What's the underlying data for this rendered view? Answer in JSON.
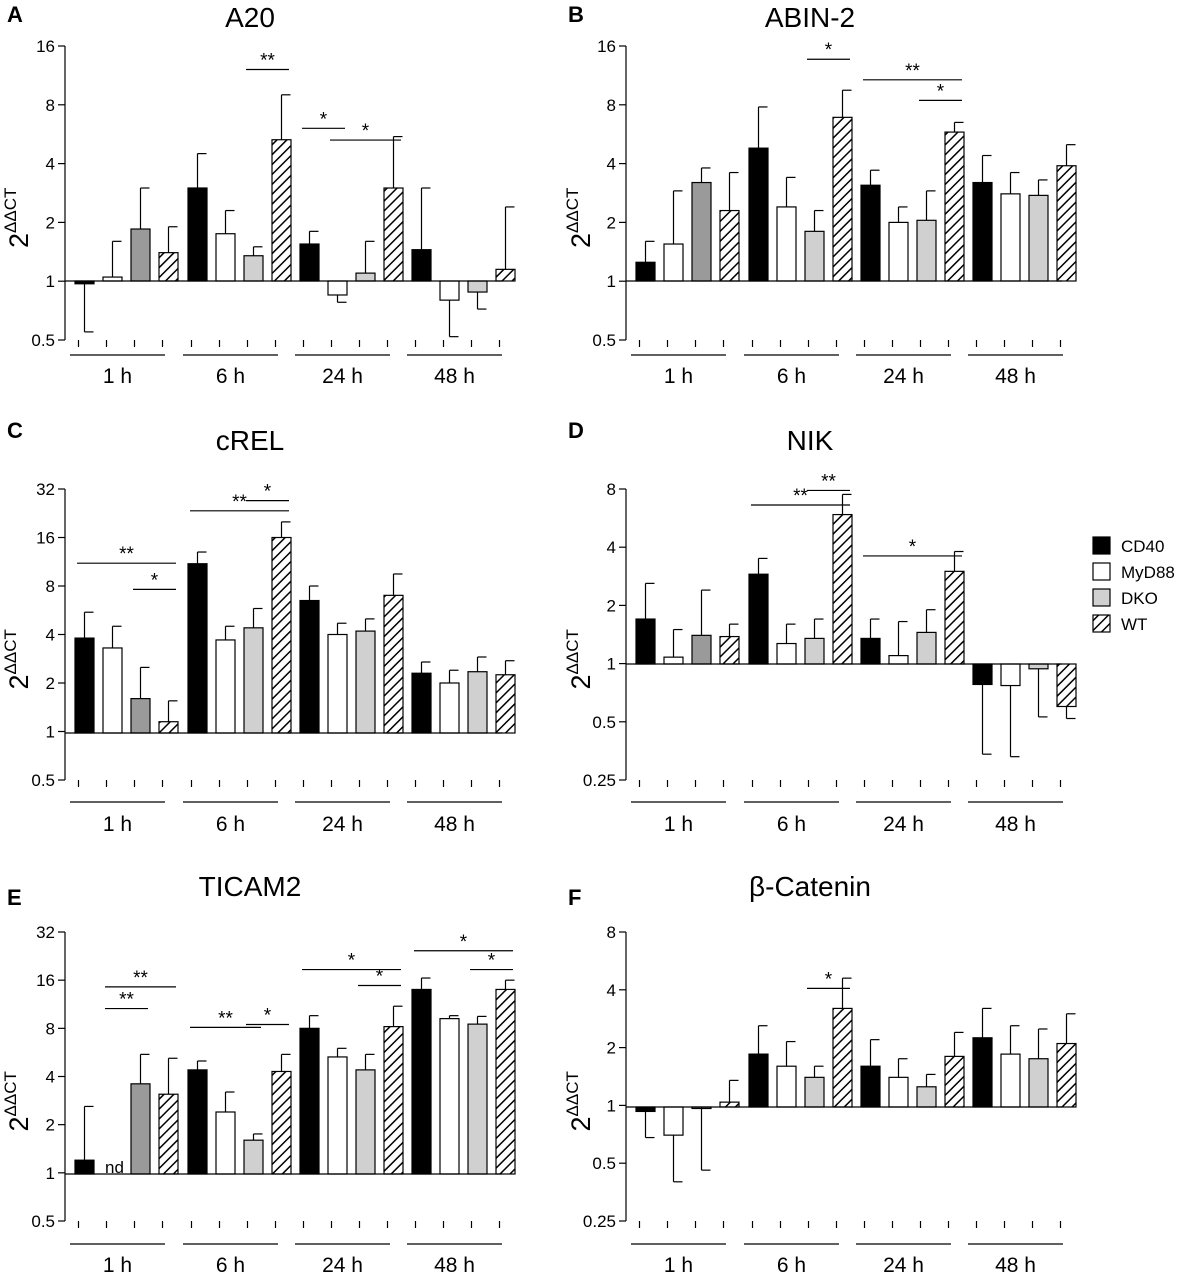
{
  "legend": {
    "items": [
      {
        "name": "CD40",
        "fill": "#000000"
      },
      {
        "name": "MyD88",
        "fill": "#ffffff"
      },
      {
        "name": "DKO",
        "fill": "#d0d0d0"
      },
      {
        "name": "WT",
        "fill": "hatch"
      }
    ]
  },
  "y_axis_label": {
    "base": "2",
    "superscript": "ΔΔCT"
  },
  "series_colors": {
    "CD40": "#000000",
    "MyD88": "#ffffff",
    "DKO": "#d0d0d0",
    "DKO_1h_dark": "#9a9a9a",
    "WT": "hatch"
  },
  "chart_data": [
    {
      "panel": "A",
      "title": "A20",
      "type": "bar",
      "yscale": "log2",
      "categories": [
        "1 h",
        "6 h",
        "24 h",
        "48 h"
      ],
      "yticks": [
        0.5,
        1,
        2,
        4,
        8,
        16
      ],
      "ytick_labels": [
        "0.5",
        "1",
        "2",
        "4",
        "8",
        "16"
      ],
      "ylim": [
        0.5,
        16
      ],
      "series": [
        {
          "name": "CD40",
          "values": [
            0.97,
            3.0,
            1.55,
            1.45
          ],
          "errors": [
            0.55,
            4.5,
            1.8,
            3.0
          ]
        },
        {
          "name": "MyD88",
          "values": [
            1.05,
            1.75,
            0.85,
            0.8
          ],
          "errors": [
            1.6,
            2.3,
            0.78,
            0.52
          ]
        },
        {
          "name": "DKO",
          "values": [
            1.85,
            1.35,
            1.1,
            0.88
          ],
          "errors": [
            3.0,
            1.5,
            1.6,
            0.72
          ]
        },
        {
          "name": "WT",
          "values": [
            1.4,
            5.3,
            3.0,
            1.15
          ],
          "errors": [
            1.9,
            9.0,
            5.5,
            2.4
          ]
        }
      ],
      "significance": [
        {
          "group": "6 h",
          "from": "DKO",
          "to": "WT",
          "level": 0.92,
          "label": "**"
        },
        {
          "group": "24 h",
          "from": "CD40",
          "to": "MyD88",
          "level": 0.72,
          "label": "*"
        },
        {
          "group": "24 h",
          "from": "MyD88",
          "to": "WT",
          "level": 0.68,
          "label": "*"
        }
      ]
    },
    {
      "panel": "B",
      "title": "ABIN-2",
      "type": "bar",
      "yscale": "log2",
      "categories": [
        "1 h",
        "6 h",
        "24 h",
        "48 h"
      ],
      "yticks": [
        0.5,
        1,
        2,
        4,
        8,
        16
      ],
      "ytick_labels": [
        "0.5",
        "1",
        "2",
        "4",
        "8",
        "16"
      ],
      "ylim": [
        0.5,
        16
      ],
      "series": [
        {
          "name": "CD40",
          "values": [
            1.25,
            4.8,
            3.1,
            3.2
          ],
          "errors": [
            1.6,
            7.8,
            3.7,
            4.4
          ]
        },
        {
          "name": "MyD88",
          "values": [
            1.55,
            2.4,
            2.0,
            2.8
          ],
          "errors": [
            2.9,
            3.4,
            2.4,
            3.6
          ]
        },
        {
          "name": "DKO",
          "values": [
            3.2,
            1.8,
            2.05,
            2.75
          ],
          "errors": [
            3.8,
            2.3,
            2.9,
            3.3
          ]
        },
        {
          "name": "WT",
          "values": [
            2.3,
            6.9,
            5.8,
            3.9
          ],
          "errors": [
            3.6,
            9.5,
            6.5,
            5.0
          ]
        }
      ],
      "significance": [
        {
          "group": "6 h",
          "from": "DKO",
          "to": "WT",
          "level": 0.955,
          "label": "*"
        },
        {
          "group": "24 h",
          "from": "CD40",
          "to": "WT",
          "level": 0.885,
          "label": "**"
        },
        {
          "group": "24 h",
          "from": "DKO",
          "to": "WT",
          "level": 0.815,
          "label": "*"
        }
      ]
    },
    {
      "panel": "C",
      "title": "cREL",
      "type": "bar",
      "yscale": "log2",
      "categories": [
        "1 h",
        "6 h",
        "24 h",
        "48 h"
      ],
      "yticks": [
        0.5,
        1,
        2,
        4,
        8,
        16,
        32
      ],
      "ytick_labels": [
        "0.5",
        "1",
        "2",
        "4",
        "8",
        "16",
        "32"
      ],
      "ylim": [
        0.5,
        32
      ],
      "series": [
        {
          "name": "CD40",
          "values": [
            3.8,
            11.0,
            6.5,
            2.3
          ],
          "errors": [
            5.5,
            13.0,
            8.0,
            2.7
          ]
        },
        {
          "name": "MyD88",
          "values": [
            3.3,
            3.7,
            4.0,
            2.0
          ],
          "errors": [
            4.5,
            4.5,
            4.7,
            2.4
          ]
        },
        {
          "name": "DKO",
          "values": [
            1.6,
            4.4,
            4.2,
            2.35
          ],
          "errors": [
            2.5,
            5.8,
            5.0,
            2.9
          ]
        },
        {
          "name": "WT",
          "values": [
            1.15,
            16.0,
            7.0,
            2.25
          ],
          "errors": [
            1.55,
            20.0,
            9.5,
            2.75
          ]
        }
      ],
      "significance": [
        {
          "group": "1 h",
          "from": "CD40",
          "to": "WT",
          "level": 0.745,
          "label": "**"
        },
        {
          "group": "1 h",
          "from": "DKO",
          "to": "WT",
          "level": 0.655,
          "label": "*"
        },
        {
          "group": "6 h",
          "from": "CD40",
          "to": "WT",
          "level": 0.925,
          "label": "**"
        },
        {
          "group": "6 h",
          "from": "DKO",
          "to": "WT",
          "level": 0.96,
          "label": "*"
        }
      ]
    },
    {
      "panel": "D",
      "title": "NIK",
      "type": "bar",
      "yscale": "log2",
      "categories": [
        "1 h",
        "6 h",
        "24 h",
        "48 h"
      ],
      "yticks": [
        0.25,
        0.5,
        1,
        2,
        4,
        8
      ],
      "ytick_labels": [
        "0.25",
        "0.5",
        "1",
        "2",
        "4",
        "8"
      ],
      "ylim": [
        0.25,
        8
      ],
      "series": [
        {
          "name": "CD40",
          "values": [
            1.7,
            2.9,
            1.35,
            0.78
          ],
          "errors": [
            2.6,
            3.5,
            1.7,
            0.34
          ]
        },
        {
          "name": "MyD88",
          "values": [
            1.08,
            1.27,
            1.1,
            0.77
          ],
          "errors": [
            1.5,
            1.6,
            1.65,
            0.33
          ]
        },
        {
          "name": "DKO",
          "values": [
            1.4,
            1.35,
            1.45,
            0.94
          ],
          "errors": [
            2.4,
            1.7,
            1.9,
            0.53
          ]
        },
        {
          "name": "WT",
          "values": [
            1.38,
            5.9,
            3.0,
            0.6
          ],
          "errors": [
            1.6,
            7.5,
            3.8,
            0.52
          ]
        }
      ],
      "significance": [
        {
          "group": "6 h",
          "from": "CD40",
          "to": "WT",
          "level": 0.945,
          "label": "**"
        },
        {
          "group": "6 h",
          "from": "DKO",
          "to": "WT",
          "level": 0.995,
          "label": "**"
        },
        {
          "group": "24 h",
          "from": "CD40",
          "to": "WT",
          "level": 0.77,
          "label": "*"
        }
      ]
    },
    {
      "panel": "E",
      "title": "TICAM2",
      "type": "bar",
      "yscale": "log2",
      "categories": [
        "1 h",
        "6 h",
        "24 h",
        "48 h"
      ],
      "yticks": [
        0.5,
        1,
        2,
        4,
        8,
        16,
        32
      ],
      "ytick_labels": [
        "0.5",
        "1",
        "2",
        "4",
        "8",
        "16",
        "32"
      ],
      "ylim": [
        0.5,
        32
      ],
      "series": [
        {
          "name": "CD40",
          "values": [
            1.2,
            4.4,
            8.0,
            14.0
          ],
          "errors": [
            2.6,
            5.0,
            9.6,
            16.5
          ]
        },
        {
          "name": "MyD88",
          "values": [
            null,
            2.4,
            5.3,
            9.2
          ],
          "errors": [
            null,
            3.2,
            6.0,
            9.6
          ]
        },
        {
          "name": "DKO",
          "values": [
            3.6,
            1.6,
            4.4,
            8.5
          ],
          "errors": [
            5.5,
            1.75,
            5.5,
            9.5
          ]
        },
        {
          "name": "WT",
          "values": [
            3.1,
            4.3,
            8.2,
            14.0
          ],
          "errors": [
            5.2,
            5.5,
            11.0,
            16.0
          ]
        }
      ],
      "missing_label": "nd",
      "significance": [
        {
          "group": "1 h",
          "from": "MyD88",
          "to": "WT",
          "level": 0.81,
          "label": "**"
        },
        {
          "group": "1 h",
          "from": "MyD88",
          "to": "DKO",
          "level": 0.735,
          "label": "**"
        },
        {
          "group": "6 h",
          "from": "CD40",
          "to": "DKO",
          "level": 0.67,
          "label": "**"
        },
        {
          "group": "6 h",
          "from": "DKO",
          "to": "WT",
          "level": 0.68,
          "label": "*"
        },
        {
          "group": "24 h",
          "from": "CD40",
          "to": "WT",
          "level": 0.87,
          "label": "*"
        },
        {
          "group": "24 h",
          "from": "DKO",
          "to": "WT",
          "level": 0.815,
          "label": "*"
        },
        {
          "group": "48 h",
          "from": "CD40",
          "to": "WT",
          "level": 0.935,
          "label": "*"
        },
        {
          "group": "48 h",
          "from": "DKO",
          "to": "WT",
          "level": 0.87,
          "label": "*"
        }
      ]
    },
    {
      "panel": "F",
      "title": "β-Catenin",
      "type": "bar",
      "yscale": "log2",
      "categories": [
        "1 h",
        "6 h",
        "24 h",
        "48 h"
      ],
      "yticks": [
        0.25,
        0.5,
        1,
        2,
        4,
        8
      ],
      "ytick_labels": [
        "0.25",
        "0.5",
        "1",
        "2",
        "4",
        "8"
      ],
      "ylim": [
        0.25,
        8
      ],
      "series": [
        {
          "name": "CD40",
          "values": [
            0.93,
            1.85,
            1.6,
            2.25
          ],
          "errors": [
            0.68,
            2.6,
            2.2,
            3.2
          ]
        },
        {
          "name": "MyD88",
          "values": [
            0.7,
            1.6,
            1.4,
            1.85
          ],
          "errors": [
            0.4,
            2.15,
            1.75,
            2.6
          ]
        },
        {
          "name": "DKO",
          "values": [
            0.98,
            1.4,
            1.25,
            1.75
          ],
          "errors": [
            0.46,
            1.6,
            1.45,
            2.5
          ]
        },
        {
          "name": "WT",
          "values": [
            1.04,
            3.2,
            1.8,
            2.1
          ],
          "errors": [
            1.35,
            4.6,
            2.4,
            3.0
          ]
        }
      ],
      "significance": [
        {
          "group": "6 h",
          "from": "DKO",
          "to": "WT",
          "level": 0.805,
          "label": "*"
        }
      ]
    }
  ]
}
